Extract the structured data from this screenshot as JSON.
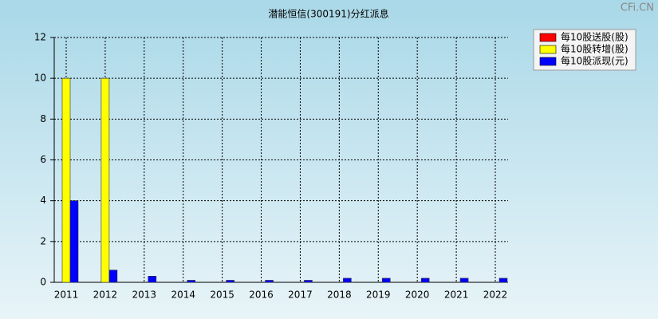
{
  "chart_data": {
    "type": "bar",
    "title": "潜能恒信(300191)分红派息",
    "watermark": "CFi.CN",
    "categories": [
      "2011",
      "2012",
      "2013",
      "2014",
      "2015",
      "2016",
      "2017",
      "2018",
      "2019",
      "2020",
      "2021",
      "2022"
    ],
    "series": [
      {
        "name": "每10股送股(股)",
        "color": "#ff0000",
        "values": [
          0,
          0,
          0,
          0,
          0,
          0,
          0,
          0,
          0,
          0,
          0,
          0
        ]
      },
      {
        "name": "每10股转增(股)",
        "color": "#ffff00",
        "values": [
          10,
          10,
          0,
          0,
          0,
          0,
          0,
          0,
          0,
          0,
          0,
          0
        ]
      },
      {
        "name": "每10股派现(元)",
        "color": "#0000ff",
        "values": [
          4,
          0.6,
          0.3,
          0.1,
          0.1,
          0.1,
          0.1,
          0.2,
          0.2,
          0.2,
          0.2,
          0.2
        ]
      }
    ],
    "ylim": [
      0,
      12
    ],
    "yticks": [
      0,
      2,
      4,
      6,
      8,
      10,
      12
    ],
    "grid": true,
    "legend": "top-right"
  }
}
